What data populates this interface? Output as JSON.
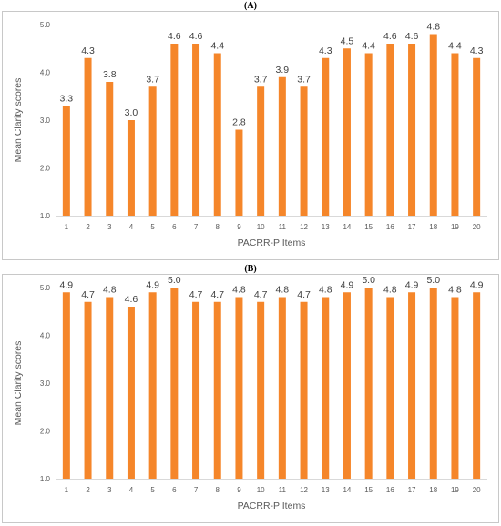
{
  "chart_data": [
    {
      "type": "bar",
      "panel_label": "(A)",
      "xlabel": "PACRR-P Items",
      "ylabel": "Mean Clarity scores",
      "ylim": [
        1.0,
        5.0
      ],
      "yticks": [
        "1.0",
        "2.0",
        "3.0",
        "4.0",
        "5.0"
      ],
      "categories": [
        "1",
        "2",
        "3",
        "4",
        "5",
        "6",
        "7",
        "8",
        "9",
        "10",
        "11",
        "12",
        "13",
        "14",
        "15",
        "16",
        "17",
        "18",
        "19",
        "20"
      ],
      "values": [
        3.3,
        4.3,
        3.8,
        3.0,
        3.7,
        4.6,
        4.6,
        4.4,
        2.8,
        3.7,
        3.9,
        3.7,
        4.3,
        4.5,
        4.4,
        4.6,
        4.6,
        4.8,
        4.4,
        4.3
      ],
      "data_labels": [
        "3.3",
        "4.3",
        "3.8",
        "3.0",
        "3.7",
        "4.6",
        "4.6",
        "4.4",
        "2.8",
        "3.7",
        "3.9",
        "3.7",
        "4.3",
        "4.5",
        "4.4",
        "4.6",
        "4.6",
        "4.8",
        "4.4",
        "4.3"
      ],
      "bar_color": "#f5862a",
      "gridlines": false
    },
    {
      "type": "bar",
      "panel_label": "(B)",
      "xlabel": "PACRR-P Items",
      "ylabel": "Mean Clarity scores",
      "ylim": [
        1.0,
        5.0
      ],
      "yticks": [
        "1.0",
        "2.0",
        "3.0",
        "4.0",
        "5.0"
      ],
      "categories": [
        "1",
        "2",
        "3",
        "4",
        "5",
        "6",
        "7",
        "8",
        "9",
        "10",
        "11",
        "12",
        "13",
        "14",
        "15",
        "16",
        "17",
        "18",
        "19",
        "20"
      ],
      "values": [
        4.9,
        4.7,
        4.8,
        4.6,
        4.9,
        5.0,
        4.7,
        4.7,
        4.8,
        4.7,
        4.8,
        4.7,
        4.8,
        4.9,
        5.0,
        4.8,
        4.9,
        5.0,
        4.8,
        4.9
      ],
      "data_labels": [
        "4.9",
        "4.7",
        "4.8",
        "4.6",
        "4.9",
        "5.0",
        "4.7",
        "4.7",
        "4.8",
        "4.7",
        "4.8",
        "4.7",
        "4.8",
        "4.9",
        "5.0",
        "4.8",
        "4.9",
        "5.0",
        "4.8",
        "4.9"
      ],
      "bar_color": "#f5862a",
      "gridlines": false
    }
  ]
}
